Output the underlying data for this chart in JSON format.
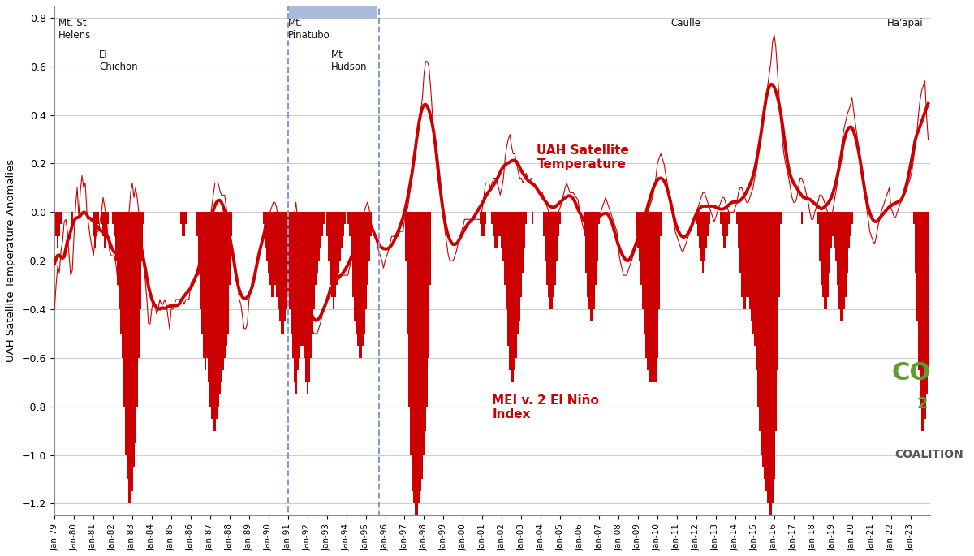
{
  "title": "",
  "ylabel": "UAH Satellite Temperature Anomalies",
  "ylim": [
    -1.25,
    0.85
  ],
  "yticks": [
    -1.2,
    -1.0,
    -0.8,
    -0.6,
    -0.4,
    -0.2,
    0.0,
    0.2,
    0.4,
    0.6,
    0.8
  ],
  "background_color": "#ffffff",
  "line_color": "#cc0000",
  "bar_color": "#cc0000",
  "label_uah": "UAH Satellite\nTemperature",
  "label_mei": "MEI v. 2 El Niño\nIndex",
  "start_year": 1979,
  "end_year": 2024
}
